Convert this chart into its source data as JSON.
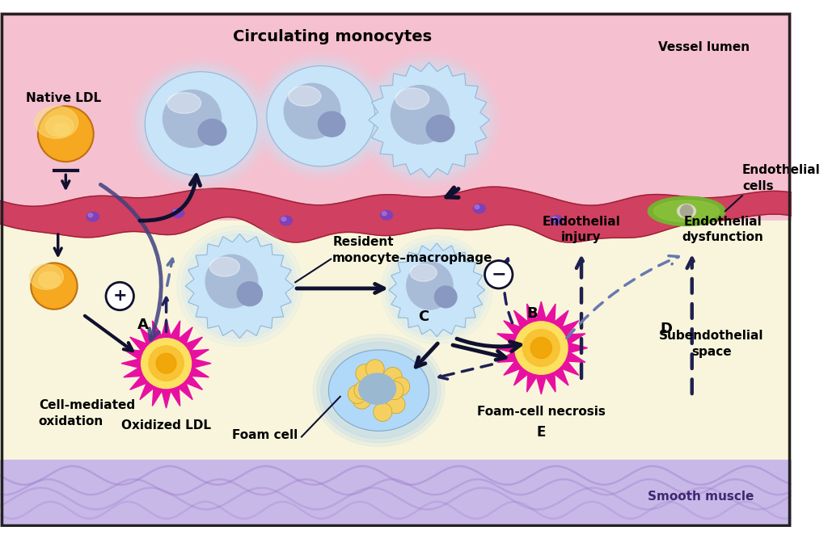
{
  "title": "Circulating monocytes",
  "vessel_lumen_label": "Vessel lumen",
  "endothelial_cells_label": "Endothelial\ncells",
  "smooth_muscle_label": "Smooth muscle",
  "subendothelial_label": "Subendothelial\nspace",
  "native_ldl_label": "Native LDL",
  "cell_mediated_label": "Cell-mediated\noxidation",
  "oxidized_ldl_label": "Oxidized LDL",
  "resident_mono_label": "Resident\nmonocyte–macrophage",
  "foam_cell_label": "Foam cell",
  "foam_cell_necrosis_label": "Foam-cell necrosis",
  "endothelial_injury_label": "Endothelial\ninjury",
  "endothelial_dysfunction_label": "Endothelial\ndysfunction",
  "label_A": "A",
  "label_B": "B",
  "label_C": "C",
  "label_D": "D",
  "label_E": "E",
  "bg_lumen_color": "#f5c0d0",
  "bg_subendothelial_color": "#f8f5dc",
  "bg_smooth_muscle_color": "#c8b8e8",
  "endothelial_top_color": "#e06080",
  "endothelial_body_color": "#d04060",
  "ldl_native_color": "#f5a820",
  "ldl_oxidized_spike_color": "#e8108c",
  "ldl_oxidized_center_color": "#f5a020",
  "monocyte_fill": "#c8e4f8",
  "monocyte_highlight": "#e8f4ff",
  "monocyte_nucleus": "#a0b8d8",
  "macrophage_fill": "#c0d8f0",
  "foam_cell_fill": "#a8d0f0",
  "foam_cell_lipid": "#f5d060",
  "endothelial_cell_fill": "#80b830",
  "arrow_dark": "#101030",
  "arrow_dark2": "#202050",
  "dashed_dark": "#182060",
  "dashed_light": "#8090c0"
}
